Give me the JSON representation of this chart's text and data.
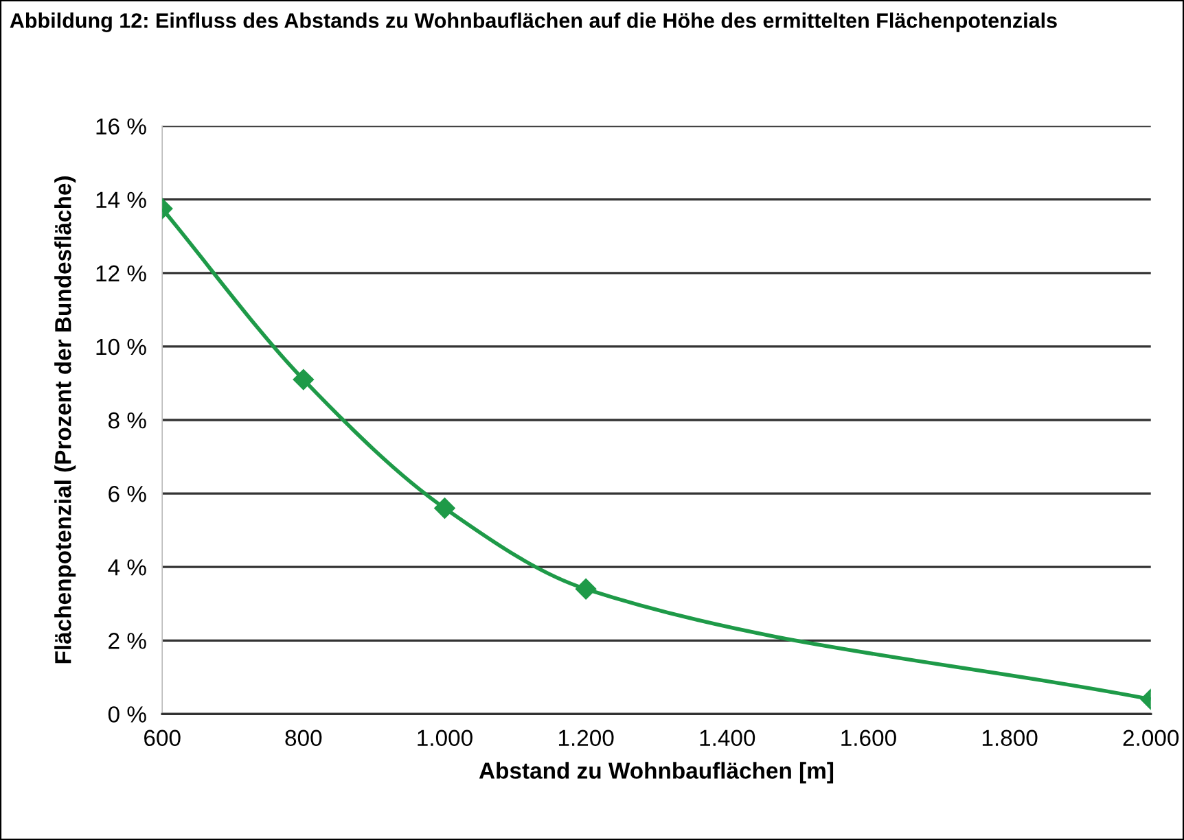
{
  "chart_data": {
    "type": "line",
    "title": "Abbildung 12: Einfluss des Abstands zu Wohnbauflächen auf die Höhe des ermittelten Flächenpotenzials",
    "xlabel": "Abstand zu Wohnbauflächen [m]",
    "ylabel": "Flächenpotenzial (Prozent der Bundesfläche)",
    "x": [
      600,
      800,
      1000,
      1200,
      2000
    ],
    "series": [
      {
        "color": "#1e9a48",
        "values": [
          13.75,
          9.1,
          5.6,
          3.4,
          0.4
        ]
      }
    ],
    "xlim": [
      600,
      2000
    ],
    "xticks": [
      600,
      800,
      {
        "value": 1000,
        "label": "1.000"
      },
      {
        "value": 1200,
        "label": "1.200"
      },
      {
        "value": 1400,
        "label": "1.400"
      },
      {
        "value": 1600,
        "label": "1.600"
      },
      {
        "value": 1800,
        "label": "1.800"
      },
      {
        "value": 2000,
        "label": "2.000"
      }
    ],
    "ylim": [
      0,
      16
    ],
    "yticks": [
      {
        "value": 0,
        "label": "0 %"
      },
      {
        "value": 2,
        "label": "2 %"
      },
      {
        "value": 4,
        "label": "4 %"
      },
      {
        "value": 6,
        "label": "6 %"
      },
      {
        "value": 8,
        "label": "8 %"
      },
      {
        "value": 10,
        "label": "10 %"
      },
      {
        "value": 12,
        "label": "12 %"
      },
      {
        "value": 14,
        "label": "14 %"
      },
      {
        "value": 16,
        "label": "16 %"
      }
    ],
    "grid": "y",
    "marker": "diamond",
    "line_style": "solid",
    "legend": false
  }
}
